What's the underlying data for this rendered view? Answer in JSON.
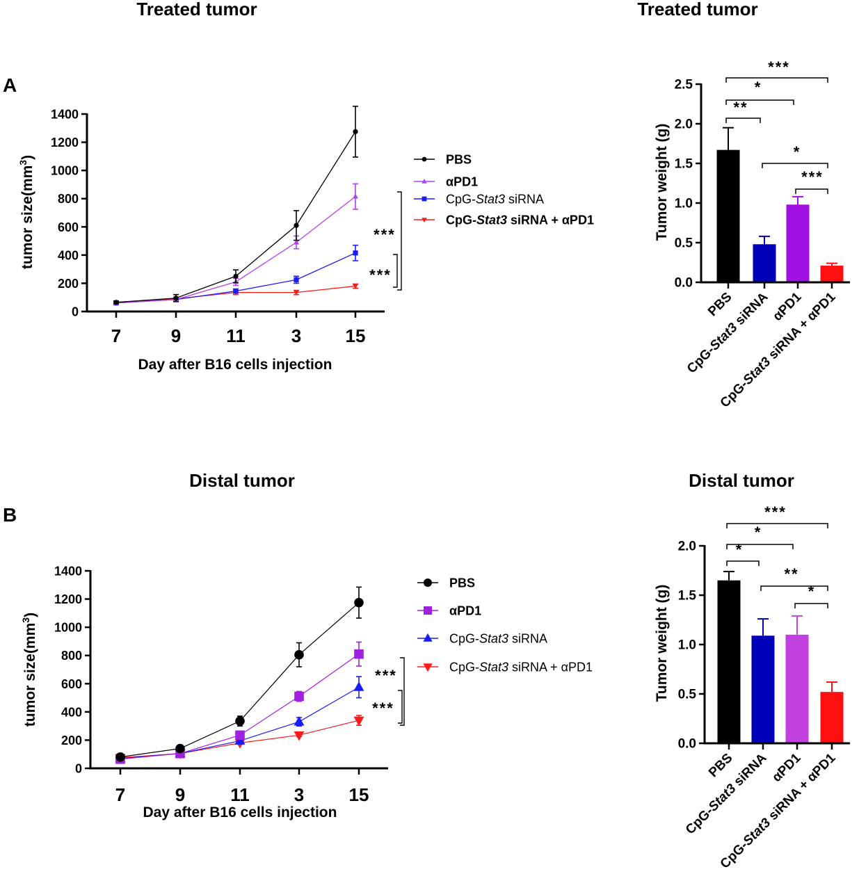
{
  "panels": [
    {
      "label": "A"
    },
    {
      "label": "B"
    }
  ],
  "colors": {
    "PBS": "#000000",
    "aPD1": "#a020e0",
    "aPD1_bar_B": "#c040e0",
    "CpG": "#1a1aff",
    "CpG_bar": "#0000b8",
    "combo": "#ff1a1a"
  },
  "chart_data": [
    {
      "type": "line",
      "title": "Treated tumor",
      "xlabel": "Day after B16 cells injection",
      "ylabel": "tumor size(mm³)",
      "categories": [
        "7",
        "9",
        "11",
        "3",
        "15"
      ],
      "ylim": [
        0,
        1400
      ],
      "yticks": [
        0,
        200,
        400,
        600,
        800,
        1000,
        1200,
        1400
      ],
      "grid": false,
      "legend": "right",
      "series": [
        {
          "name": "PBS",
          "marker": "circle",
          "color": "#000000",
          "bold": true,
          "values": [
            65,
            95,
            250,
            610,
            1275
          ],
          "errors": [
            10,
            25,
            45,
            105,
            180
          ]
        },
        {
          "name": "αPD1",
          "marker": "triangle-up",
          "color": "#b040f0",
          "bold": true,
          "values": [
            60,
            85,
            210,
            490,
            815
          ],
          "errors": [
            5,
            10,
            25,
            45,
            90
          ]
        },
        {
          "name": "CpG-Stat3 siRNA",
          "marker": "square",
          "color": "#1a1aff",
          "bold": false,
          "values": [
            60,
            85,
            145,
            225,
            415
          ],
          "errors": [
            5,
            5,
            15,
            25,
            55
          ]
        },
        {
          "name": "CpG-Stat3 siRNA + αPD1",
          "marker": "triangle-down",
          "color": "#ff1a1a",
          "bold": true,
          "values": [
            65,
            90,
            135,
            135,
            180
          ],
          "errors": [
            5,
            5,
            15,
            15,
            15
          ]
        }
      ],
      "significance": [
        "***",
        "***"
      ]
    },
    {
      "type": "bar",
      "title": "Treated tumor",
      "ylabel": "Tumor weight (g)",
      "categories": [
        "PBS",
        "CpG-Stat3 siRNA",
        "αPD1",
        "CpG-Stat3 siRNA + αPD1"
      ],
      "colors": [
        "#000000",
        "#0000b8",
        "#a010e0",
        "#ff1010"
      ],
      "values": [
        1.67,
        0.48,
        0.98,
        0.21
      ],
      "errors": [
        0.28,
        0.1,
        0.1,
        0.03
      ],
      "ylim": [
        0,
        2.5
      ],
      "yticks": [
        "0.0",
        "0.5",
        "1.0",
        "1.5",
        "2.0",
        "2.5"
      ],
      "comparisons": [
        {
          "pair": [
            0,
            3
          ],
          "label": "***"
        },
        {
          "pair": [
            0,
            2
          ],
          "label": "*"
        },
        {
          "pair": [
            0,
            1
          ],
          "label": "**"
        },
        {
          "pair": [
            1,
            3
          ],
          "label": "*"
        },
        {
          "pair": [
            2,
            3
          ],
          "label": "***"
        }
      ]
    },
    {
      "type": "line",
      "title": "Distal tumor",
      "xlabel": "Day after B16 cells injection",
      "ylabel": "tumor size(mm³)",
      "categories": [
        "7",
        "9",
        "11",
        "3",
        "15"
      ],
      "ylim": [
        0,
        1400
      ],
      "yticks": [
        0,
        200,
        400,
        600,
        800,
        1000,
        1200,
        1400
      ],
      "grid": false,
      "legend": "right",
      "series": [
        {
          "name": "PBS",
          "marker": "circle",
          "color": "#000000",
          "bold": true,
          "values": [
            80,
            140,
            335,
            805,
            1175
          ],
          "errors": [
            10,
            15,
            35,
            85,
            110
          ]
        },
        {
          "name": "αPD1",
          "marker": "square",
          "color": "#a020e0",
          "bold": true,
          "values": [
            65,
            105,
            235,
            510,
            810
          ],
          "errors": [
            5,
            10,
            20,
            35,
            85
          ]
        },
        {
          "name": "CpG-Stat3 siRNA",
          "marker": "triangle-up",
          "color": "#1a1aff",
          "bold": false,
          "values": [
            70,
            105,
            195,
            330,
            575
          ],
          "errors": [
            5,
            10,
            15,
            30,
            75
          ]
        },
        {
          "name": "CpG-Stat3 siRNA + αPD1",
          "marker": "triangle-down",
          "color": "#ff1a1a",
          "bold": false,
          "values": [
            75,
            105,
            180,
            235,
            340
          ],
          "errors": [
            5,
            10,
            10,
            10,
            35
          ]
        }
      ],
      "significance": [
        "***",
        "***"
      ]
    },
    {
      "type": "bar",
      "title": "Distal tumor",
      "ylabel": "Tumor weight (g)",
      "categories": [
        "PBS",
        "CpG-Stat3 siRNA",
        "αPD1",
        "CpG-Stat3 siRNA + αPD1"
      ],
      "colors": [
        "#000000",
        "#0000b8",
        "#c040e0",
        "#ff1010"
      ],
      "values": [
        1.65,
        1.09,
        1.1,
        0.52
      ],
      "errors": [
        0.09,
        0.17,
        0.19,
        0.1
      ],
      "ylim": [
        0,
        2.0
      ],
      "yticks": [
        "0.0",
        "0.5",
        "1.0",
        "1.5",
        "2.0"
      ],
      "comparisons": [
        {
          "pair": [
            0,
            3
          ],
          "label": "***"
        },
        {
          "pair": [
            0,
            2
          ],
          "label": "*"
        },
        {
          "pair": [
            0,
            1
          ],
          "label": "*"
        },
        {
          "pair": [
            1,
            3
          ],
          "label": "**"
        },
        {
          "pair": [
            2,
            3
          ],
          "label": "*"
        }
      ]
    }
  ]
}
